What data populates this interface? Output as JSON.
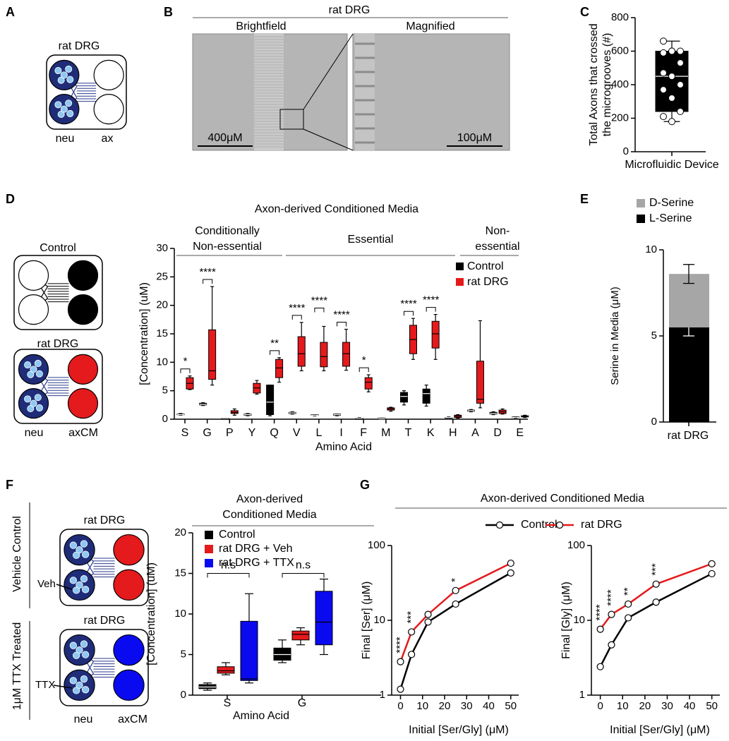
{
  "panel_labels": [
    "A",
    "B",
    "C",
    "D",
    "E",
    "F",
    "G"
  ],
  "panel_a": {
    "title": "rat DRG",
    "labels": [
      "neu",
      "ax"
    ]
  },
  "panel_b": {
    "title": "rat DRG",
    "images": [
      {
        "title": "Brightfield",
        "scale": "400μM"
      },
      {
        "title": "Magnified",
        "scale": "100μM"
      }
    ]
  },
  "panel_d_diagram": {
    "titles": [
      "Control",
      "rat DRG"
    ],
    "labels": [
      "neu",
      "axCM"
    ]
  },
  "panel_f_diagram": {
    "titles": [
      "rat DRG",
      "rat DRG"
    ],
    "conditions": [
      "Vehicle Control",
      "1μM TTX Treated"
    ],
    "arrows": [
      "Veh",
      "TTX"
    ],
    "labels": [
      "neu",
      "axCM"
    ]
  },
  "chart_data": [
    {
      "type": "box",
      "ylabel": [
        "Total Axons that crossed",
        "the microgrooves (#)"
      ],
      "categories": [
        "Microfluidic Device"
      ],
      "ylim": [
        0,
        800
      ],
      "yticks": [
        0,
        200,
        400,
        600,
        800
      ],
      "series": [
        {
          "color": "#000000",
          "values": [
            [
              180,
              240,
              450,
              600,
              660
            ]
          ],
          "points": [
            [
              660,
              600,
              600,
              590,
              600,
              530,
              470,
              450,
              400,
              370,
              320,
              240,
              210,
              180
            ]
          ]
        }
      ]
    },
    {
      "type": "box",
      "title": "Axon-derived Conditioned Media",
      "ylabel": "[Concentration] (uM)",
      "xlabel": "Amino Acid",
      "groups": [
        [
          "Conditionally",
          "Non-essential"
        ],
        [
          "Essential"
        ],
        [
          "Non-",
          "essential"
        ]
      ],
      "categories": [
        "S",
        "G",
        "P",
        "Y",
        "Q",
        "V",
        "L",
        "I",
        "F",
        "M",
        "T",
        "K",
        "H",
        "A",
        "D",
        "E"
      ],
      "ylim": [
        0,
        30
      ],
      "yticks": [
        0,
        5,
        10,
        15,
        20,
        25,
        30
      ],
      "legend": "upper right",
      "annotations": [
        "*",
        "****",
        "**",
        "****",
        "****",
        "****",
        "*",
        "****",
        "****"
      ],
      "series": [
        {
          "name": "Control",
          "color": "#000000",
          "values": [
            [
              0.7,
              0.8,
              0.8,
              0.9,
              1.0
            ],
            [
              2.4,
              2.5,
              2.6,
              2.8,
              2.9
            ],
            [
              0.1,
              0.1,
              0.2,
              0.2,
              0.2
            ],
            [
              0.6,
              0.7,
              0.8,
              0.9,
              1.0
            ],
            [
              0.6,
              0.8,
              3,
              6,
              6
            ],
            [
              0.9,
              1.0,
              1.1,
              1.2,
              1.3
            ],
            [
              0.6,
              0.7,
              0.7,
              0.8,
              0.8
            ],
            [
              0.6,
              0.7,
              0.8,
              0.9,
              0.9
            ],
            [
              0.1,
              0.2,
              0.2,
              0.2,
              0.3
            ],
            [
              0.1,
              0.1,
              0.1,
              0.2,
              0.2
            ],
            [
              2.5,
              3,
              4,
              4.7,
              5
            ],
            [
              2.3,
              2.8,
              4.5,
              5.3,
              6
            ],
            [
              0.2,
              0.3,
              0.3,
              0.3,
              0.4
            ],
            [
              1.3,
              1.4,
              1.5,
              1.6,
              1.7
            ],
            [
              0.8,
              0.9,
              1.0,
              1.2,
              1.3
            ],
            [
              0.2,
              0.3,
              0.3,
              0.4,
              0.4
            ]
          ]
        },
        {
          "name": "rat DRG",
          "color": "#e41a1c",
          "values": [
            [
              5.2,
              5.3,
              6.3,
              7.3,
              7.6
            ],
            [
              6,
              7,
              8.5,
              15.7,
              23.3
            ],
            [
              0.7,
              1.0,
              1.2,
              1.5,
              1.8
            ],
            [
              4.4,
              4.6,
              5.5,
              6.3,
              6.8
            ],
            [
              6.5,
              7.3,
              9,
              10.5,
              10.8
            ],
            [
              8.5,
              9.3,
              11.5,
              14.5,
              17
            ],
            [
              8.5,
              9.2,
              11,
              13.5,
              16.3
            ],
            [
              8.6,
              9.3,
              11.5,
              13.5,
              15.8
            ],
            [
              4.8,
              5.3,
              6.5,
              7.3,
              7.8
            ],
            [
              1.4,
              1.6,
              1.8,
              2.0,
              2.1
            ],
            [
              10.5,
              11.5,
              14,
              16.5,
              17.7
            ],
            [
              10.5,
              12.5,
              15,
              17.2,
              18.4
            ],
            [
              0.2,
              0.3,
              0.5,
              0.7,
              0.8
            ],
            [
              2,
              2.8,
              3.5,
              10.2,
              17.3
            ],
            [
              0.9,
              1.0,
              1.3,
              1.6,
              1.8
            ],
            [
              0.3,
              0.4,
              0.5,
              0.6,
              0.7
            ]
          ]
        }
      ]
    },
    {
      "type": "stacked_bar",
      "ylabel": "Serine in Media (μM)",
      "categories": [
        "rat DRG"
      ],
      "ylim": [
        0,
        10
      ],
      "yticks": [
        0,
        5,
        10
      ],
      "legend": "top",
      "series": [
        {
          "name": "L-Serine",
          "color": "#000000",
          "values": [
            5.5
          ],
          "errors": [
            0.5
          ]
        },
        {
          "name": "D-Serine",
          "color": "#a6a6a6",
          "values": [
            3.1
          ],
          "errors": [
            0.55
          ]
        }
      ]
    },
    {
      "type": "box",
      "title": [
        "Axon-derived",
        "Conditioned Media"
      ],
      "ylabel": "[Concentration] (uM)",
      "xlabel": "Amino Acid",
      "categories": [
        "S",
        "G"
      ],
      "ylim": [
        0,
        20
      ],
      "yticks": [
        0,
        5,
        10,
        15,
        20
      ],
      "legend": "upper left",
      "annotations": [
        "n.s",
        "n.s"
      ],
      "series": [
        {
          "name": "Control",
          "color": "#000000",
          "values": [
            [
              0.6,
              0.8,
              1.0,
              1.3,
              1.5
            ],
            [
              4,
              4.3,
              5,
              5.8,
              6.8
            ]
          ]
        },
        {
          "name": "rat DRG + Veh",
          "color": "#e41a1c",
          "values": [
            [
              2.5,
              2.7,
              3,
              3.5,
              4
            ],
            [
              6.2,
              6.8,
              7.5,
              7.9,
              8.3
            ]
          ]
        },
        {
          "name": "rat DRG + TTX",
          "color": "#0a0af0",
          "values": [
            [
              1.5,
              1.8,
              2,
              9.1,
              12.5
            ],
            [
              5,
              6.2,
              9,
              12.8,
              14.3
            ]
          ]
        }
      ]
    },
    {
      "type": "line",
      "title": "Axon-derived Conditioned Media",
      "ylabel": "Final [Ser] (μM)",
      "xlabel": "Initial [Ser/Gly] (μM)",
      "log_y": true,
      "x": [
        0,
        5,
        12.5,
        25,
        50
      ],
      "xlim": [
        -4,
        52
      ],
      "xticks": [
        0,
        10,
        20,
        30,
        40,
        50
      ],
      "ylim": [
        1,
        100
      ],
      "yticks": [
        1,
        10,
        100
      ],
      "legend": "top",
      "annotations": [
        "****",
        "***",
        "*"
      ],
      "series": [
        {
          "name": "Control",
          "color": "#000000",
          "values": [
            1.2,
            3.5,
            9.5,
            16.5,
            43
          ]
        },
        {
          "name": "rat DRG",
          "color": "#e41a1c",
          "values": [
            2.8,
            7,
            12,
            25,
            58
          ]
        }
      ]
    },
    {
      "type": "line",
      "ylabel": "Final [Gly] (μM)",
      "xlabel": "Initial [Ser/Gly] (μM)",
      "log_y": true,
      "x": [
        0,
        5,
        12.5,
        25,
        50
      ],
      "xlim": [
        -4,
        52
      ],
      "xticks": [
        0,
        10,
        20,
        30,
        40,
        50
      ],
      "ylim": [
        1,
        100
      ],
      "yticks": [
        1,
        10,
        100
      ],
      "annotations": [
        "****",
        "****",
        "**",
        "***"
      ],
      "series": [
        {
          "color": "#000000",
          "values": [
            2.4,
            4.7,
            10.8,
            17.5,
            42
          ]
        },
        {
          "color": "#e41a1c",
          "values": [
            7.6,
            12,
            16.5,
            30.5,
            57
          ]
        }
      ]
    }
  ]
}
